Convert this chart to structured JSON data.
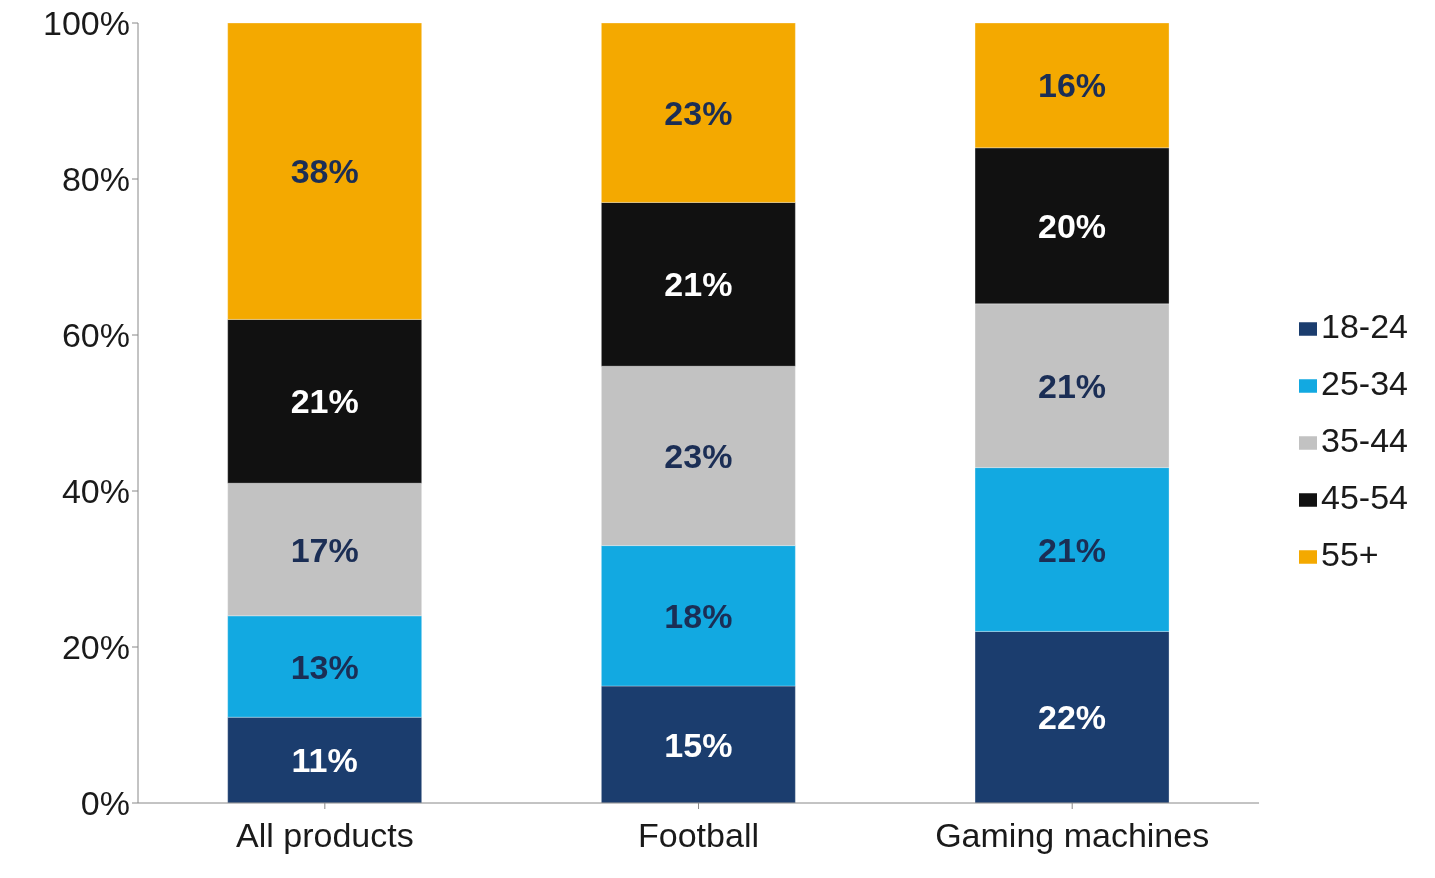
{
  "chart_data": {
    "type": "bar",
    "stacked": true,
    "categories": [
      "All products",
      "Football",
      "Gaming machines"
    ],
    "series": [
      {
        "name": "18-24",
        "color": "#1b3d6e",
        "values": [
          11,
          15,
          22
        ],
        "value_labels": [
          "11%",
          "15%",
          "22%"
        ]
      },
      {
        "name": "25-34",
        "color": "#12a9e1",
        "values": [
          13,
          18,
          21
        ],
        "value_labels": [
          "13%",
          "18%",
          "21%"
        ]
      },
      {
        "name": "35-44",
        "color": "#c2c2c2",
        "values": [
          17,
          23,
          21
        ],
        "value_labels": [
          "17%",
          "23%",
          "21%"
        ]
      },
      {
        "name": "45-54",
        "color": "#111111",
        "values": [
          21,
          21,
          20
        ],
        "value_labels": [
          "21%",
          "21%",
          "20%"
        ]
      },
      {
        "name": "55+",
        "color": "#f4a900",
        "values": [
          38,
          23,
          16
        ],
        "value_labels": [
          "38%",
          "23%",
          "16%"
        ]
      }
    ],
    "ylim": [
      0,
      100
    ],
    "yticks": [
      {
        "value": 0,
        "label": "0%"
      },
      {
        "value": 20,
        "label": "20%"
      },
      {
        "value": 40,
        "label": "40%"
      },
      {
        "value": 60,
        "label": "60%"
      },
      {
        "value": 80,
        "label": "80%"
      },
      {
        "value": 100,
        "label": "100%"
      }
    ],
    "grid": false,
    "legend": "right"
  }
}
